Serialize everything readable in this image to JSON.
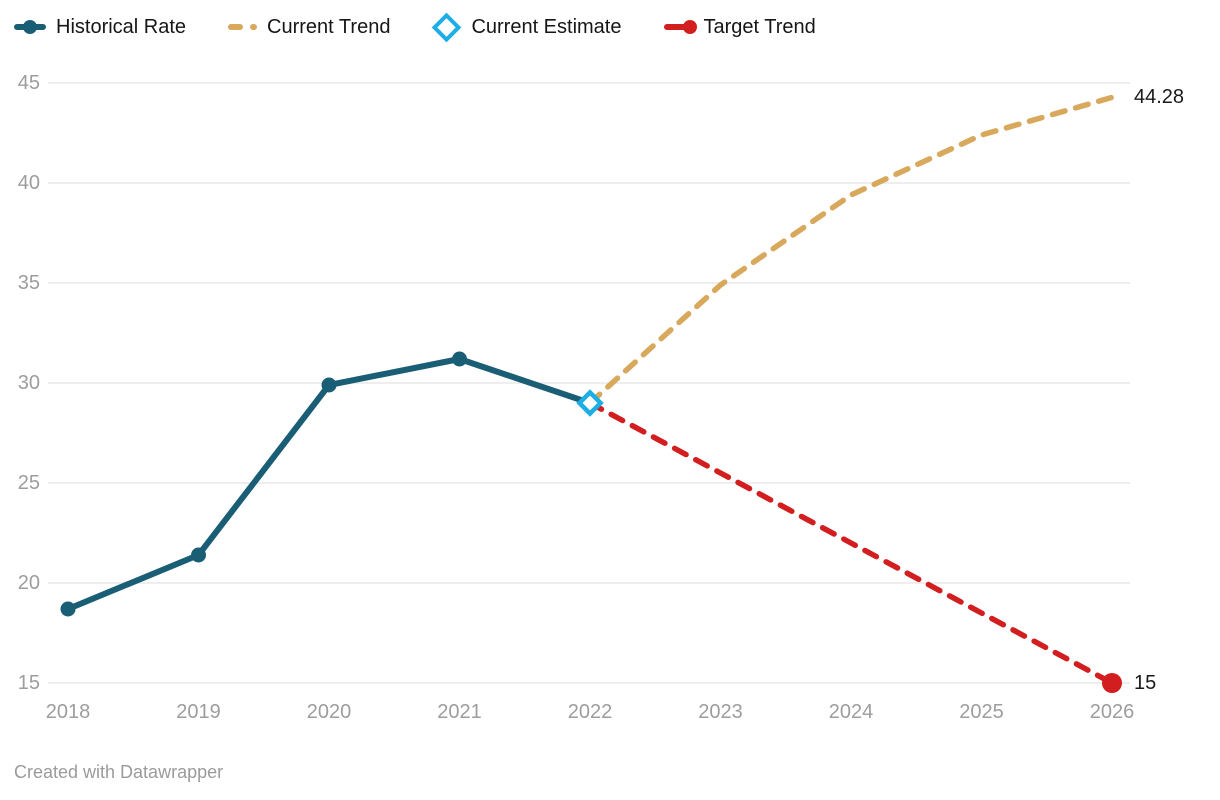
{
  "legend": {
    "items": [
      {
        "id": "historical-rate",
        "label": "Historical Rate",
        "marker": "line-with-dot",
        "color": "#1a5e76"
      },
      {
        "id": "current-trend",
        "label": "Current Trend",
        "marker": "dashed-line",
        "color": "#d8a85c"
      },
      {
        "id": "current-estimate",
        "label": "Current Estimate",
        "marker": "diamond-outline",
        "color": "#1caee5"
      },
      {
        "id": "target-trend",
        "label": "Target Trend",
        "marker": "line-with-end-dot",
        "color": "#d21e1e"
      }
    ]
  },
  "chart_data": {
    "type": "line",
    "title": "",
    "xlabel": "",
    "ylabel": "",
    "x_domain": [
      2018,
      2026
    ],
    "y_domain": [
      15,
      45
    ],
    "y_ticks": [
      "45",
      "40",
      "35",
      "30",
      "25",
      "20",
      "15"
    ],
    "y_tick_values": [
      45,
      40,
      35,
      30,
      25,
      20,
      15
    ],
    "x_ticks": [
      "2018",
      "2019",
      "2020",
      "2021",
      "2022",
      "2023",
      "2024",
      "2025",
      "2026"
    ],
    "x_tick_values": [
      2018,
      2019,
      2020,
      2021,
      2022,
      2023,
      2024,
      2025,
      2026
    ],
    "grid": true,
    "legend_position": "top",
    "series": [
      {
        "name": "Historical Rate",
        "color": "#1a5e76",
        "style": "solid",
        "point_marker": "dot",
        "x": [
          2018,
          2019,
          2020,
          2021,
          2022
        ],
        "values": [
          18.7,
          21.4,
          29.9,
          31.2,
          29
        ]
      },
      {
        "name": "Current Trend",
        "color": "#d8a85c",
        "style": "dashed",
        "x": [
          2022,
          2023,
          2024,
          2025,
          2026
        ],
        "values": [
          29,
          34.9,
          39.4,
          42.4,
          44.28
        ],
        "end_label": "44.28"
      },
      {
        "name": "Target Trend",
        "color": "#d21e1e",
        "style": "dashed",
        "end_marker": "dot",
        "x": [
          2022,
          2023,
          2024,
          2025,
          2026
        ],
        "values": [
          29,
          25.5,
          22,
          18.5,
          15
        ],
        "end_label": "15"
      },
      {
        "name": "Current Estimate",
        "color": "#1caee5",
        "style": "point",
        "point_marker": "diamond",
        "x": [
          2022
        ],
        "values": [
          29
        ]
      }
    ],
    "colors": {
      "gridline": "#e9e9e9",
      "tick_text": "#9d9d9d",
      "value_label_text": "#1a1a1a"
    }
  },
  "footer": {
    "text": "Created with Datawrapper"
  }
}
